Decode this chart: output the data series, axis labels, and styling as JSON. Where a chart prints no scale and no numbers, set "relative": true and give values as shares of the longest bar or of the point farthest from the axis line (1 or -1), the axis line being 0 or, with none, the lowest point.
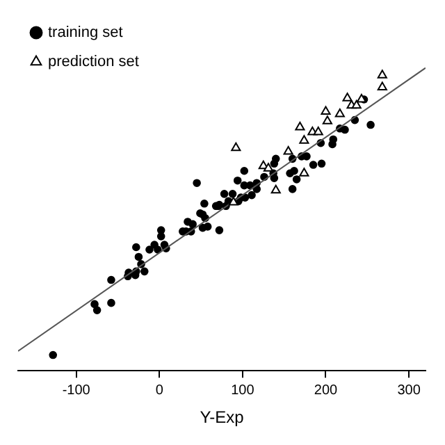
{
  "chart_data": {
    "type": "scatter",
    "xlabel": "Y-Exp",
    "relative": true,
    "xlim": [
      -170,
      320
    ],
    "xticks": [
      -100,
      0,
      100,
      200,
      300
    ],
    "grid": false,
    "legend": "top left",
    "series": [
      {
        "name": "training set",
        "color": "#000000",
        "marker": "circle",
        "x": [
          246,
          235,
          254,
          217,
          223,
          209,
          208,
          194,
          177,
          171,
          160,
          140,
          138,
          195,
          185,
          162,
          157,
          137,
          126,
          165,
          138,
          117,
          102,
          94,
          109,
          102,
          45,
          160,
          78,
          54,
          71,
          83,
          98,
          111,
          -128,
          -75,
          -78,
          -58,
          -58,
          -38,
          -37,
          -29,
          -28,
          -18,
          -22,
          -25,
          -28,
          -12,
          -6,
          -2,
          6,
          8,
          2,
          2,
          28,
          32,
          38,
          34,
          40,
          52,
          58,
          55,
          49,
          52,
          72,
          68,
          72,
          80,
          88,
          95,
          103,
          117
        ],
        "values": [
          0.896,
          0.828,
          0.812,
          0.8,
          0.796,
          0.764,
          0.748,
          0.752,
          0.708,
          0.708,
          0.7,
          0.7,
          0.684,
          0.684,
          0.68,
          0.66,
          0.652,
          0.652,
          0.64,
          0.632,
          0.636,
          0.62,
          0.66,
          0.628,
          0.612,
          0.612,
          0.62,
          0.6,
          0.584,
          0.552,
          0.544,
          0.56,
          0.572,
          0.58,
          0.052,
          0.2,
          0.22,
          0.224,
          0.3,
          0.312,
          0.324,
          0.316,
          0.328,
          0.328,
          0.352,
          0.376,
          0.408,
          0.4,
          0.416,
          0.4,
          0.416,
          0.404,
          0.444,
          0.464,
          0.46,
          0.46,
          0.46,
          0.492,
          0.484,
          0.472,
          0.476,
          0.504,
          0.52,
          0.516,
          0.464,
          0.544,
          0.548,
          0.544,
          0.584,
          0.56,
          0.572,
          0.6
        ]
      },
      {
        "name": "prediction set",
        "color": "#000000",
        "marker": "triangle",
        "x": [
          268,
          268,
          226,
          243,
          231,
          237,
          200,
          217,
          202,
          169,
          184,
          191,
          174,
          92,
          155,
          125,
          131,
          174,
          140,
          89
        ],
        "values": [
          0.976,
          0.936,
          0.9,
          0.896,
          0.876,
          0.876,
          0.856,
          0.848,
          0.824,
          0.804,
          0.788,
          0.788,
          0.76,
          0.736,
          0.724,
          0.676,
          0.668,
          0.652,
          0.596,
          0.556
        ]
      },
      {
        "type": "line",
        "color": "#555555",
        "marker": "none",
        "x": [
          -170,
          320
        ],
        "values": [
          0.065,
          1
        ]
      }
    ]
  }
}
